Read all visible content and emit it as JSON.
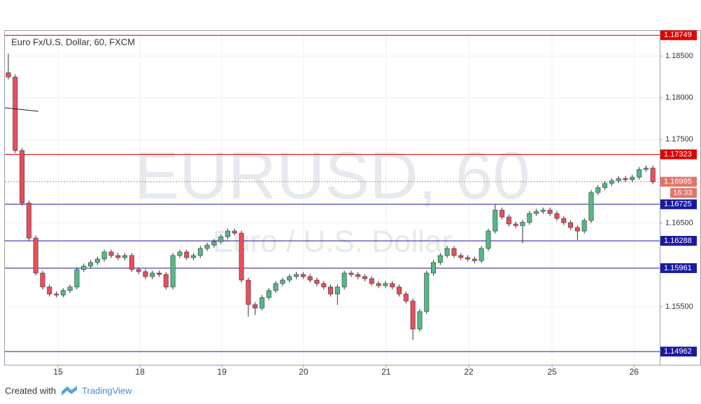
{
  "chart_data": {
    "type": "candlestick",
    "title": "Euro Fx/U.S. Dollar, 60, FXCM",
    "watermark": "EURUSD, 60",
    "watermark_subtitle": "Euro / U.S. Dollar",
    "footer_text": "Created with",
    "footer_brand": "TradingView",
    "countdown": "16:33",
    "up_color": "#53b987",
    "down_color": "#eb4d5c",
    "wick_color": "#333333",
    "grid": true,
    "xlim": [
      0,
      191
    ],
    "ylim": [
      1.14804,
      1.18802
    ],
    "xticks": [
      {
        "value": 15.5,
        "label": "15"
      },
      {
        "value": 39.4,
        "label": "18"
      },
      {
        "value": 63.3,
        "label": "19"
      },
      {
        "value": 87.1,
        "label": "20"
      },
      {
        "value": 111.2,
        "label": "21"
      },
      {
        "value": 135.3,
        "label": "22"
      },
      {
        "value": 159.6,
        "label": "25"
      },
      {
        "value": 183.5,
        "label": "26"
      }
    ],
    "yticks": [
      {
        "value": 1.185,
        "label": "1.18500"
      },
      {
        "value": 1.18,
        "label": "1.18000"
      },
      {
        "value": 1.175,
        "label": "1.17500"
      },
      {
        "value": 1.165,
        "label": "1.16500"
      },
      {
        "value": 1.155,
        "label": "1.15500"
      }
    ],
    "levels": [
      {
        "price": 1.18749,
        "color": "#e00000",
        "dotted": false
      },
      {
        "price": 1.17323,
        "color": "#e00000",
        "dotted": false
      },
      {
        "price": 1.16995,
        "color": "#e57368",
        "dotted": true
      },
      {
        "price": 1.16725,
        "color": "#1a1aa0",
        "dotted": false
      },
      {
        "price": 1.16288,
        "color": "#1a1aa0",
        "dotted": false
      },
      {
        "price": 1.15961,
        "color": "#1a1aa0",
        "dotted": false
      },
      {
        "price": 1.14962,
        "color": "#1a1aa0",
        "dotted": false
      }
    ],
    "x": [
      1,
      3,
      5,
      7,
      9,
      11,
      13,
      15,
      17,
      19,
      21,
      23,
      25,
      27,
      29,
      31,
      33,
      35,
      37,
      39,
      41,
      43,
      45,
      47,
      49,
      51,
      53,
      55,
      57,
      59,
      61,
      63,
      65,
      67,
      69,
      71,
      73,
      75,
      77,
      79,
      81,
      83,
      85,
      87,
      89,
      91,
      93,
      95,
      97,
      99,
      101,
      103,
      105,
      107,
      109,
      111,
      113,
      115,
      117,
      119,
      121,
      123,
      125,
      127,
      129,
      131,
      133,
      135,
      137,
      139,
      141,
      143,
      145,
      147,
      149,
      151,
      153,
      155,
      157,
      159,
      161,
      163,
      165,
      167,
      169,
      171,
      173,
      175,
      177,
      179,
      181,
      183,
      185,
      187,
      189
    ],
    "open": [
      1.183,
      1.18249,
      1.17369,
      1.1674,
      1.16321,
      1.15902,
      1.15735,
      1.15651,
      1.1564,
      1.15693,
      1.15735,
      1.15944,
      1.15986,
      1.16028,
      1.1607,
      1.16154,
      1.16112,
      1.16087,
      1.16112,
      1.15944,
      1.15919,
      1.1586,
      1.15902,
      1.15885,
      1.15735,
      1.16112,
      1.16154,
      1.16087,
      1.16112,
      1.16196,
      1.16237,
      1.16279,
      1.16338,
      1.16405,
      1.1638,
      1.15818,
      1.15525,
      1.15483,
      1.15609,
      1.15693,
      1.15777,
      1.15818,
      1.1586,
      1.15885,
      1.1586,
      1.15818,
      1.15777,
      1.15735,
      1.15651,
      1.15735,
      1.15902,
      1.15885,
      1.1586,
      1.15835,
      1.15777,
      1.15751,
      1.15777,
      1.15735,
      1.15651,
      1.15567,
      1.15232,
      1.15441,
      1.15902,
      1.16028,
      1.16112,
      1.16196,
      1.16112,
      1.16087,
      1.1607,
      1.1605,
      1.16196,
      1.16405,
      1.16656,
      1.16573,
      1.16489,
      1.1647,
      1.1651,
      1.16615,
      1.1664,
      1.16656,
      1.16615,
      1.16556,
      1.16506,
      1.16447,
      1.16405,
      1.16531,
      1.16866,
      1.16925,
      1.16975,
      1.17008,
      1.17034,
      1.1702,
      1.1705,
      1.17142,
      1.17159
    ],
    "high": [
      1.1853,
      1.18279,
      1.17399,
      1.1677,
      1.16351,
      1.15932,
      1.15765,
      1.15681,
      1.15723,
      1.15765,
      1.15974,
      1.16016,
      1.16058,
      1.161,
      1.16184,
      1.16184,
      1.16142,
      1.16142,
      1.16142,
      1.15974,
      1.15949,
      1.15932,
      1.15932,
      1.15915,
      1.16142,
      1.16184,
      1.16184,
      1.16142,
      1.16226,
      1.16267,
      1.16309,
      1.16368,
      1.16435,
      1.16435,
      1.1641,
      1.15848,
      1.15555,
      1.15639,
      1.15723,
      1.15807,
      1.15848,
      1.1589,
      1.15915,
      1.15915,
      1.1589,
      1.15848,
      1.15807,
      1.15765,
      1.15765,
      1.15932,
      1.15932,
      1.15915,
      1.1589,
      1.15865,
      1.15807,
      1.15807,
      1.15807,
      1.15765,
      1.15681,
      1.15597,
      1.15471,
      1.15932,
      1.16058,
      1.16142,
      1.16226,
      1.16226,
      1.16142,
      1.16117,
      1.161,
      1.16226,
      1.16435,
      1.1672,
      1.16686,
      1.16603,
      1.16519,
      1.1654,
      1.16645,
      1.1667,
      1.16686,
      1.16686,
      1.16645,
      1.16586,
      1.16536,
      1.16477,
      1.16561,
      1.16896,
      1.16955,
      1.17005,
      1.17038,
      1.17064,
      1.17064,
      1.1708,
      1.17172,
      1.17189,
      1.17189
    ],
    "low": [
      1.18219,
      1.17339,
      1.1671,
      1.16291,
      1.15872,
      1.15705,
      1.15621,
      1.1561,
      1.1561,
      1.15663,
      1.15705,
      1.15914,
      1.15956,
      1.15998,
      1.1604,
      1.16082,
      1.16057,
      1.16057,
      1.15914,
      1.15889,
      1.1583,
      1.1583,
      1.15855,
      1.15705,
      1.15705,
      1.16082,
      1.16057,
      1.16057,
      1.16082,
      1.16166,
      1.16207,
      1.16249,
      1.16308,
      1.1635,
      1.15788,
      1.1538,
      1.154,
      1.15453,
      1.15579,
      1.15663,
      1.15747,
      1.15788,
      1.1583,
      1.1583,
      1.15788,
      1.15747,
      1.15705,
      1.15621,
      1.1552,
      1.15705,
      1.15855,
      1.1583,
      1.15805,
      1.15747,
      1.15721,
      1.15721,
      1.15705,
      1.15621,
      1.15537,
      1.151,
      1.15202,
      1.15411,
      1.15872,
      1.15998,
      1.16082,
      1.16082,
      1.16057,
      1.1604,
      1.1602,
      1.1602,
      1.16166,
      1.16375,
      1.16543,
      1.16459,
      1.1644,
      1.1626,
      1.1648,
      1.16585,
      1.1661,
      1.16585,
      1.16526,
      1.16476,
      1.16417,
      1.163,
      1.16375,
      1.16501,
      1.16836,
      1.16895,
      1.16945,
      1.16978,
      1.1699,
      1.1699,
      1.1702,
      1.17112,
      1.16965
    ],
    "close": [
      1.18249,
      1.17369,
      1.1674,
      1.16321,
      1.15902,
      1.15735,
      1.15651,
      1.1564,
      1.15693,
      1.15735,
      1.15944,
      1.15986,
      1.16028,
      1.1607,
      1.16154,
      1.16112,
      1.16087,
      1.16112,
      1.15944,
      1.15919,
      1.1586,
      1.15902,
      1.15885,
      1.15735,
      1.16112,
      1.16154,
      1.16087,
      1.16112,
      1.16196,
      1.16237,
      1.16279,
      1.16338,
      1.16405,
      1.1638,
      1.15818,
      1.15525,
      1.15483,
      1.15609,
      1.15693,
      1.15777,
      1.15818,
      1.1586,
      1.15885,
      1.1586,
      1.15818,
      1.15777,
      1.15735,
      1.15651,
      1.15735,
      1.15902,
      1.15885,
      1.1586,
      1.15835,
      1.15777,
      1.15751,
      1.15777,
      1.15735,
      1.15651,
      1.15567,
      1.15232,
      1.15441,
      1.15902,
      1.16028,
      1.16112,
      1.16196,
      1.16112,
      1.16087,
      1.1607,
      1.1605,
      1.16196,
      1.16405,
      1.16656,
      1.16573,
      1.16489,
      1.1647,
      1.1651,
      1.16615,
      1.1664,
      1.16656,
      1.16615,
      1.16556,
      1.16506,
      1.16447,
      1.16405,
      1.16531,
      1.16866,
      1.16925,
      1.16975,
      1.17008,
      1.17034,
      1.1702,
      1.1705,
      1.17142,
      1.17159,
      1.16995
    ]
  }
}
